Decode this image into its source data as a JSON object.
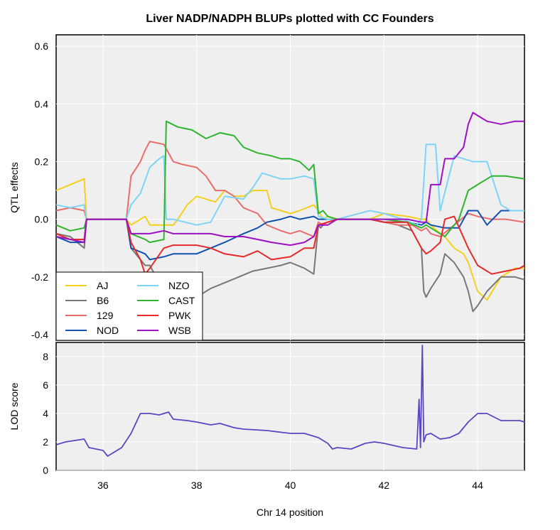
{
  "title": "Liver NADP/NADPH BLUPs plotted with CC Founders",
  "chart_data": [
    {
      "type": "line",
      "panel": "top",
      "ylabel": "QTL effects",
      "xlim": [
        35,
        45
      ],
      "ylim": [
        -0.42,
        0.64
      ],
      "yticks": [
        0.6,
        0.4,
        0.2,
        0.0,
        -0.2,
        -0.4
      ],
      "ytick_labels": [
        "0.6",
        "0.4",
        "0.2",
        "0.0",
        "-0.2",
        "-0.4"
      ],
      "grid": true,
      "legend": "bottom-left",
      "series": [
        {
          "name": "AJ",
          "color": "#f4d01e",
          "x": [
            35.0,
            35.3,
            35.6,
            35.65,
            36.5,
            36.6,
            36.9,
            37.0,
            37.5,
            37.6,
            37.8,
            38.0,
            38.2,
            38.4,
            38.6,
            38.8,
            39.0,
            39.2,
            39.5,
            39.6,
            40.0,
            40.2,
            40.5,
            40.6,
            40.7,
            40.8,
            41.0,
            41.7,
            42.0,
            42.5,
            42.8,
            42.9,
            43.0,
            43.2,
            43.3,
            43.5,
            43.7,
            43.8,
            44.0,
            44.2,
            44.5,
            44.8,
            45.0
          ],
          "y": [
            0.1,
            0.12,
            0.14,
            0.0,
            0.0,
            -0.02,
            0.01,
            -0.02,
            -0.02,
            0.0,
            0.05,
            0.08,
            0.07,
            0.06,
            0.1,
            0.08,
            0.08,
            0.1,
            0.1,
            0.04,
            0.02,
            0.03,
            0.05,
            0.03,
            0.0,
            0.01,
            0.0,
            0.0,
            0.02,
            0.01,
            0.0,
            0.0,
            -0.02,
            -0.05,
            -0.06,
            -0.1,
            -0.12,
            -0.15,
            -0.25,
            -0.28,
            -0.2,
            -0.17,
            -0.17
          ]
        },
        {
          "name": "B6",
          "color": "#777777",
          "x": [
            35.0,
            35.3,
            35.6,
            35.65,
            36.5,
            36.6,
            36.9,
            37.0,
            37.2,
            37.4,
            37.7,
            38.0,
            38.3,
            38.6,
            38.9,
            39.2,
            39.5,
            39.8,
            40.0,
            40.3,
            40.5,
            40.6,
            40.65,
            40.7,
            40.8,
            41.0,
            41.7,
            42.0,
            42.3,
            42.6,
            42.8,
            42.85,
            42.9,
            43.0,
            43.2,
            43.3,
            43.5,
            43.7,
            43.8,
            43.9,
            44.0,
            44.2,
            44.5,
            44.8,
            45.0
          ],
          "y": [
            -0.05,
            -0.06,
            -0.1,
            0.0,
            0.0,
            -0.1,
            -0.16,
            -0.16,
            -0.22,
            -0.2,
            -0.25,
            -0.27,
            -0.24,
            -0.22,
            -0.2,
            -0.18,
            -0.17,
            -0.16,
            -0.15,
            -0.17,
            -0.19,
            -0.02,
            -0.03,
            -0.02,
            -0.01,
            0.0,
            0.0,
            -0.01,
            -0.02,
            -0.04,
            -0.1,
            -0.25,
            -0.27,
            -0.24,
            -0.19,
            -0.12,
            -0.15,
            -0.2,
            -0.25,
            -0.32,
            -0.3,
            -0.25,
            -0.2,
            -0.2,
            -0.21
          ]
        },
        {
          "name": "129",
          "color": "#e76e6b",
          "x": [
            35.0,
            35.3,
            35.6,
            35.65,
            36.5,
            36.6,
            36.8,
            36.9,
            37.0,
            37.3,
            37.5,
            37.7,
            38.0,
            38.2,
            38.4,
            38.6,
            38.8,
            39.0,
            39.3,
            39.5,
            39.8,
            40.0,
            40.2,
            40.5,
            40.6,
            40.7,
            40.8,
            41.0,
            41.7,
            42.0,
            42.3,
            42.6,
            42.8,
            42.9,
            43.0,
            43.2,
            43.5,
            43.8,
            44.0,
            44.3,
            44.6,
            45.0
          ],
          "y": [
            0.03,
            0.04,
            0.03,
            0.0,
            0.0,
            0.15,
            0.2,
            0.24,
            0.27,
            0.26,
            0.2,
            0.19,
            0.18,
            0.15,
            0.1,
            0.1,
            0.08,
            0.04,
            0.02,
            -0.02,
            -0.04,
            -0.05,
            -0.04,
            -0.06,
            -0.01,
            -0.02,
            -0.01,
            0.0,
            0.0,
            -0.01,
            -0.02,
            -0.02,
            -0.04,
            -0.03,
            -0.05,
            -0.06,
            -0.02,
            0.02,
            0.01,
            0.0,
            0.0,
            -0.01
          ]
        },
        {
          "name": "NOD",
          "color": "#1251b0",
          "x": [
            35.0,
            35.3,
            35.6,
            35.65,
            36.5,
            36.6,
            36.9,
            37.0,
            37.3,
            37.5,
            38.0,
            38.3,
            38.6,
            39.0,
            39.3,
            39.5,
            39.8,
            40.0,
            40.2,
            40.5,
            40.6,
            40.8,
            41.0,
            41.7,
            42.0,
            42.5,
            42.8,
            42.9,
            43.0,
            43.3,
            43.6,
            43.8,
            44.0,
            44.2,
            44.5,
            45.0
          ],
          "y": [
            -0.06,
            -0.08,
            -0.08,
            0.0,
            0.0,
            -0.1,
            -0.12,
            -0.14,
            -0.13,
            -0.12,
            -0.12,
            -0.1,
            -0.08,
            -0.05,
            -0.03,
            -0.01,
            0.0,
            0.01,
            0.0,
            0.01,
            0.0,
            0.0,
            0.0,
            0.0,
            -0.01,
            -0.01,
            -0.02,
            -0.01,
            -0.02,
            -0.03,
            -0.03,
            0.03,
            0.03,
            -0.02,
            0.03,
            0.03
          ]
        },
        {
          "name": "NZO",
          "color": "#7ed4f5",
          "x": [
            35.0,
            35.3,
            35.6,
            35.65,
            36.5,
            36.6,
            36.8,
            37.0,
            37.2,
            37.3,
            37.35,
            37.5,
            38.0,
            38.3,
            38.6,
            39.0,
            39.2,
            39.4,
            39.8,
            40.0,
            40.3,
            40.5,
            40.6,
            40.8,
            41.0,
            41.7,
            42.0,
            42.4,
            42.7,
            42.8,
            42.9,
            43.1,
            43.2,
            43.5,
            43.7,
            43.9,
            44.0,
            44.2,
            44.5,
            44.7,
            45.0
          ],
          "y": [
            0.05,
            0.04,
            0.05,
            0.0,
            0.0,
            0.05,
            0.09,
            0.18,
            0.21,
            0.22,
            0.0,
            0.0,
            -0.02,
            -0.01,
            0.08,
            0.07,
            0.11,
            0.16,
            0.14,
            0.14,
            0.15,
            0.14,
            0.01,
            0.0,
            0.0,
            0.03,
            0.02,
            0.0,
            -0.02,
            0.0,
            0.26,
            0.26,
            0.03,
            0.22,
            0.21,
            0.2,
            0.2,
            0.2,
            0.05,
            0.03,
            0.03
          ]
        },
        {
          "name": "CAST",
          "color": "#2fb52f",
          "x": [
            35.0,
            35.3,
            35.6,
            35.65,
            36.5,
            36.6,
            36.9,
            37.0,
            37.3,
            37.35,
            37.6,
            37.9,
            38.2,
            38.5,
            38.8,
            39.0,
            39.3,
            39.6,
            39.8,
            40.0,
            40.2,
            40.4,
            40.5,
            40.6,
            40.7,
            40.8,
            41.0,
            41.7,
            42.0,
            42.5,
            42.8,
            42.9,
            43.0,
            43.3,
            43.6,
            43.7,
            43.8,
            44.0,
            44.3,
            44.6,
            45.0
          ],
          "y": [
            -0.02,
            -0.04,
            -0.03,
            0.0,
            0.0,
            -0.05,
            -0.07,
            -0.08,
            -0.07,
            0.34,
            0.32,
            0.31,
            0.28,
            0.3,
            0.29,
            0.25,
            0.23,
            0.22,
            0.21,
            0.21,
            0.2,
            0.17,
            0.19,
            0.02,
            0.03,
            0.01,
            0.0,
            0.0,
            0.0,
            -0.01,
            -0.03,
            -0.02,
            -0.03,
            -0.06,
            0.0,
            0.05,
            0.1,
            0.12,
            0.15,
            0.15,
            0.14
          ]
        },
        {
          "name": "PWK",
          "color": "#e62a2a",
          "x": [
            35.0,
            35.3,
            35.6,
            35.65,
            36.5,
            36.6,
            36.8,
            36.9,
            37.0,
            37.3,
            37.5,
            38.0,
            38.3,
            38.6,
            39.0,
            39.3,
            39.6,
            40.0,
            40.3,
            40.5,
            40.6,
            40.8,
            41.0,
            41.7,
            42.0,
            42.5,
            42.8,
            42.9,
            43.0,
            43.2,
            43.3,
            43.5,
            43.8,
            44.0,
            44.3,
            44.6,
            44.9,
            45.0
          ],
          "y": [
            -0.05,
            -0.07,
            -0.07,
            0.0,
            0.0,
            -0.08,
            -0.14,
            -0.19,
            -0.17,
            -0.1,
            -0.09,
            -0.09,
            -0.1,
            -0.12,
            -0.13,
            -0.11,
            -0.14,
            -0.13,
            -0.1,
            -0.1,
            -0.02,
            -0.01,
            0.0,
            0.0,
            -0.01,
            -0.01,
            -0.1,
            -0.12,
            -0.11,
            -0.08,
            0.0,
            0.01,
            -0.1,
            -0.16,
            -0.19,
            -0.18,
            -0.17,
            -0.16
          ]
        },
        {
          "name": "WSB",
          "color": "#9e10c4",
          "x": [
            35.0,
            35.3,
            35.6,
            35.65,
            36.5,
            36.6,
            37.0,
            37.3,
            37.5,
            38.0,
            38.3,
            38.6,
            39.0,
            39.3,
            39.6,
            40.0,
            40.3,
            40.5,
            40.6,
            40.8,
            41.0,
            41.7,
            42.0,
            42.5,
            42.8,
            42.9,
            43.0,
            43.2,
            43.3,
            43.5,
            43.7,
            43.8,
            43.9,
            44.0,
            44.2,
            44.5,
            44.8,
            45.0
          ],
          "y": [
            -0.06,
            -0.07,
            -0.08,
            0.0,
            0.0,
            -0.05,
            -0.05,
            -0.04,
            -0.05,
            -0.05,
            -0.05,
            -0.06,
            -0.06,
            -0.07,
            -0.08,
            -0.09,
            -0.08,
            -0.06,
            -0.02,
            -0.02,
            0.0,
            0.0,
            0.0,
            0.0,
            -0.01,
            -0.01,
            0.12,
            0.12,
            0.21,
            0.21,
            0.25,
            0.33,
            0.37,
            0.36,
            0.34,
            0.33,
            0.34,
            0.34
          ]
        }
      ]
    },
    {
      "type": "line",
      "panel": "bottom",
      "xlabel": "Chr 14 position",
      "ylabel": "LOD score",
      "xlim": [
        35,
        45
      ],
      "ylim": [
        0,
        9
      ],
      "yticks": [
        0,
        2,
        4,
        6,
        8
      ],
      "ytick_labels": [
        "0",
        "2",
        "4",
        "6",
        "8"
      ],
      "xticks": [
        36,
        38,
        40,
        42,
        44
      ],
      "xtick_labels": [
        "36",
        "38",
        "40",
        "42",
        "44"
      ],
      "grid": true,
      "series": [
        {
          "color": "#5847c4",
          "x": [
            35.0,
            35.2,
            35.4,
            35.6,
            35.7,
            36.0,
            36.1,
            36.2,
            36.4,
            36.6,
            36.7,
            36.8,
            37.0,
            37.2,
            37.4,
            37.5,
            37.8,
            38.0,
            38.3,
            38.5,
            38.8,
            39.0,
            39.5,
            40.0,
            40.3,
            40.6,
            40.8,
            40.9,
            41.0,
            41.3,
            41.6,
            41.8,
            42.0,
            42.4,
            42.7,
            42.75,
            42.78,
            42.82,
            42.85,
            42.9,
            43.0,
            43.2,
            43.4,
            43.6,
            43.8,
            44.0,
            44.2,
            44.5,
            44.9,
            45.0
          ],
          "y": [
            1.8,
            2.0,
            2.1,
            2.2,
            1.6,
            1.4,
            1.0,
            1.2,
            1.6,
            2.6,
            3.3,
            4.0,
            4.0,
            3.9,
            4.1,
            3.6,
            3.5,
            3.4,
            3.2,
            3.3,
            3.0,
            2.9,
            2.8,
            2.6,
            2.6,
            2.3,
            1.9,
            1.5,
            1.6,
            1.5,
            1.9,
            2.0,
            1.9,
            1.6,
            1.5,
            5.0,
            1.6,
            8.8,
            2.0,
            2.5,
            2.6,
            2.2,
            2.3,
            2.6,
            3.4,
            4.0,
            4.0,
            3.5,
            3.5,
            3.4
          ]
        }
      ]
    }
  ]
}
